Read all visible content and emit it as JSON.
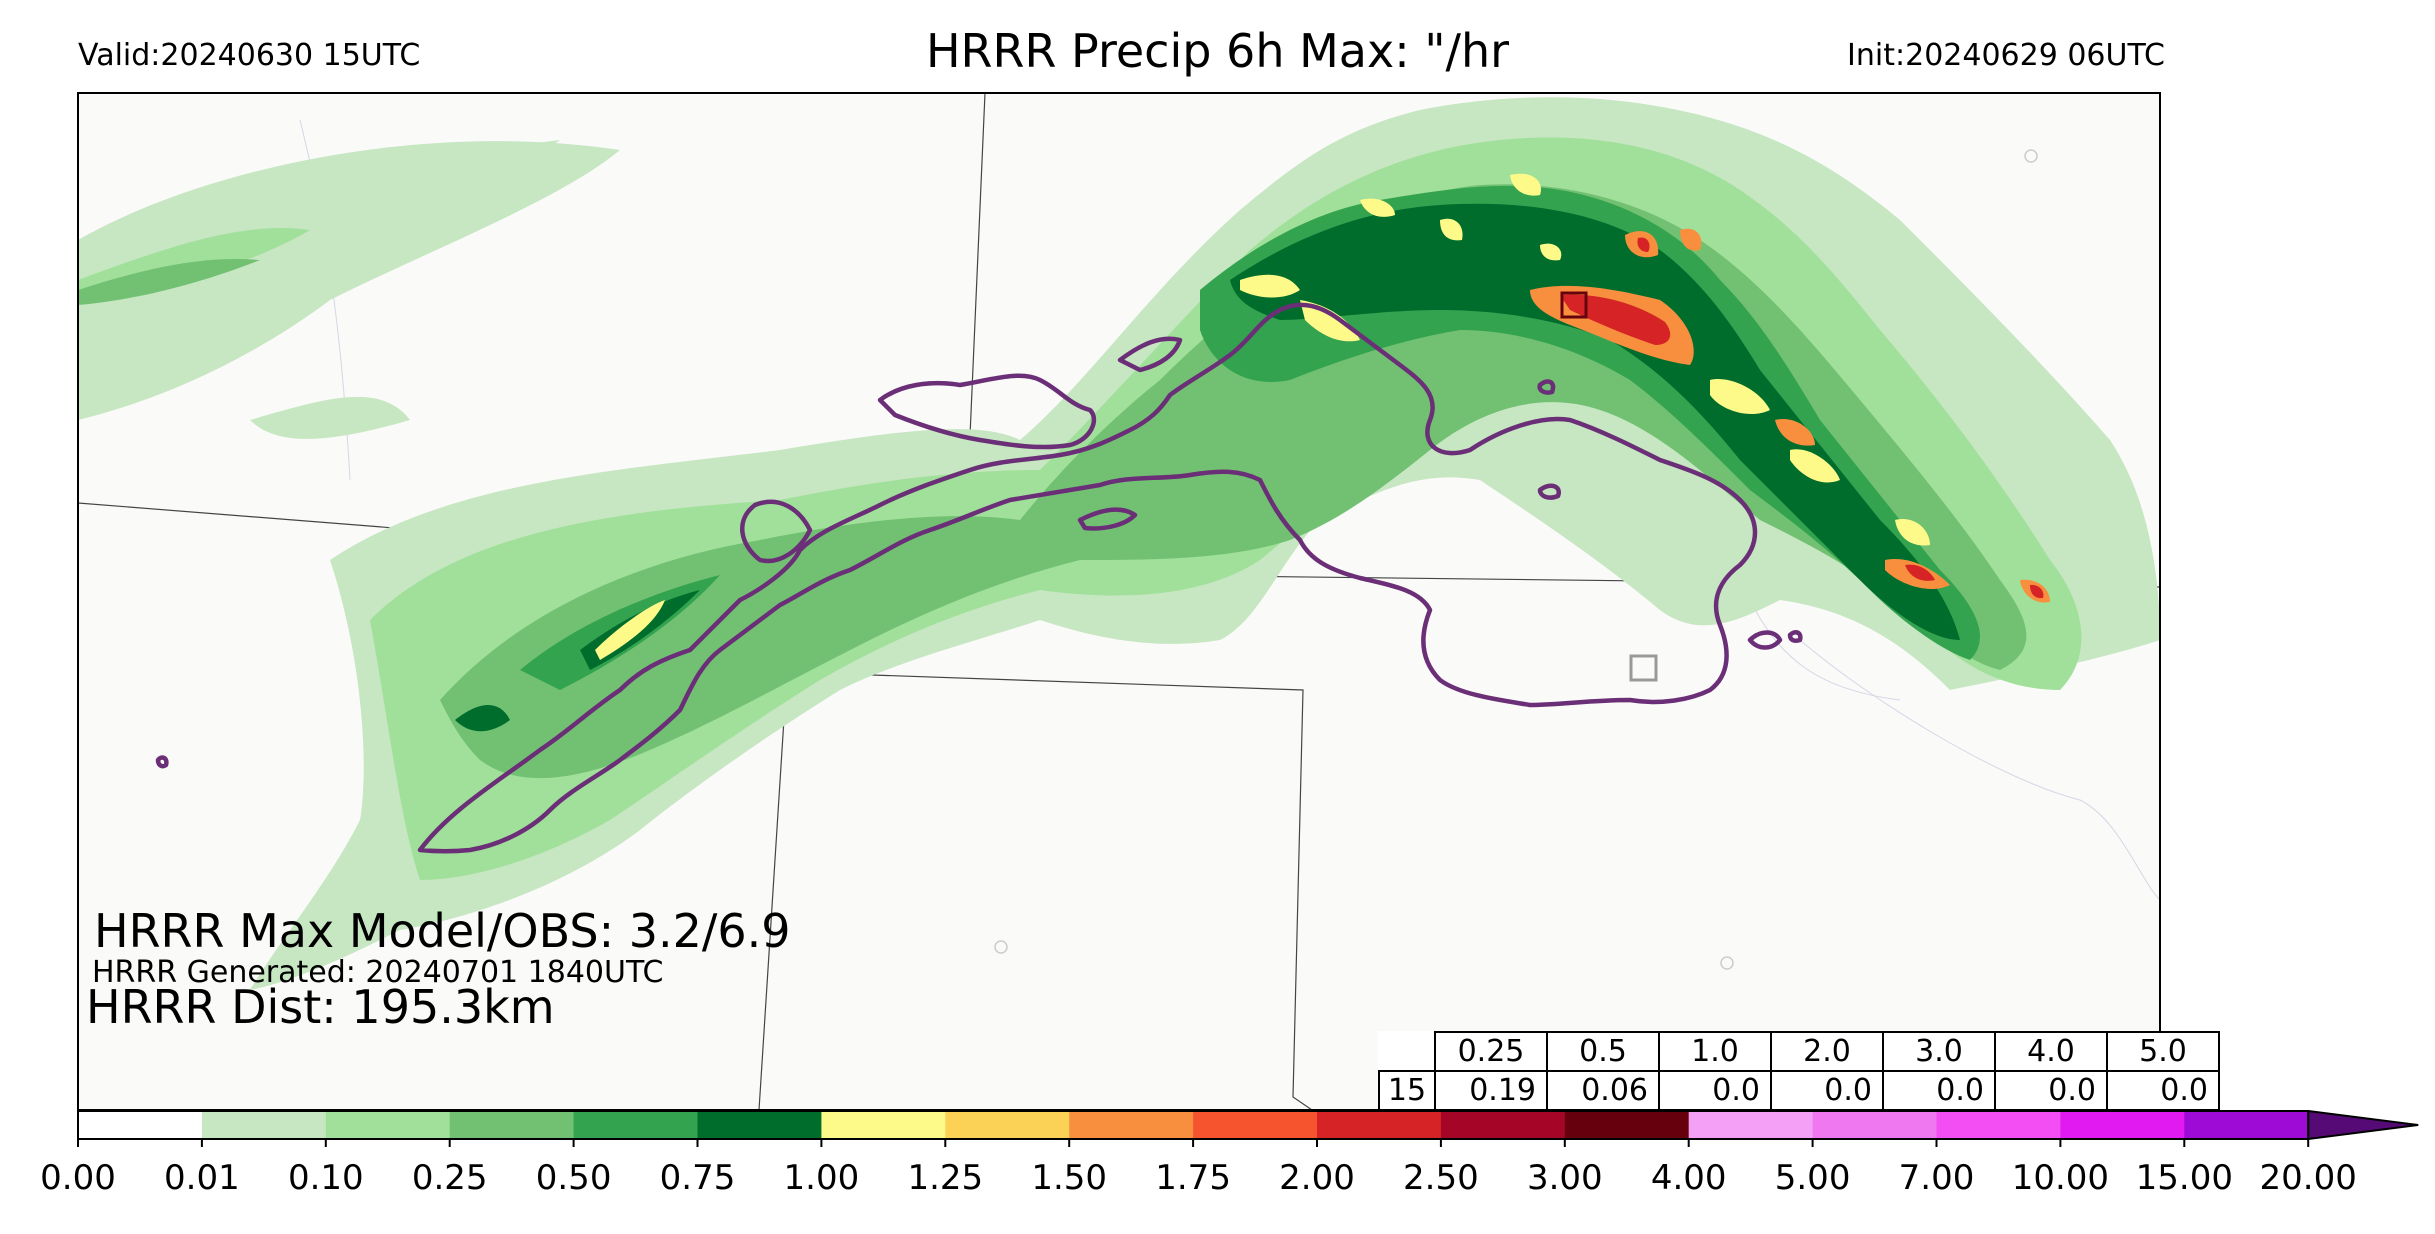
{
  "header": {
    "valid": "Valid:20240630 15UTC",
    "title": "HRRR Precip 6h Max: \"/hr",
    "init": "Init:20240629 06UTC"
  },
  "stats": {
    "max_model_obs": "HRRR Max Model/OBS: 3.2/6.9",
    "generated": "HRRR Generated: 20240701 1840UTC",
    "dist": "HRRR Dist: 195.3km"
  },
  "threshold_table": {
    "thresholds": [
      "0.25",
      "0.5",
      "1.0",
      "2.0",
      "3.0",
      "4.0",
      "5.0"
    ],
    "row_label": "15",
    "values": [
      "0.19",
      "0.06",
      "0.0",
      "0.0",
      "0.0",
      "0.0",
      "0.0"
    ]
  },
  "colorbar": {
    "ticks": [
      "0.00",
      "0.01",
      "0.10",
      "0.25",
      "0.50",
      "0.75",
      "1.00",
      "1.25",
      "1.50",
      "1.75",
      "2.00",
      "2.50",
      "3.00",
      "4.00",
      "5.00",
      "7.00",
      "10.00",
      "15.00",
      "20.00"
    ],
    "colors": [
      "#ffffff",
      "#c7e6c2",
      "#a1e09a",
      "#72c173",
      "#34a34f",
      "#006d2c",
      "#fdfa8a",
      "#fbd256",
      "#f88f3e",
      "#f6542e",
      "#d62326",
      "#a50527",
      "#67000d",
      "#f4a0f6",
      "#ef78f0",
      "#f34ef4",
      "#e11af2",
      "#9e0bd6"
    ],
    "extend_color": "#560a75"
  },
  "map": {
    "colors": {
      "background": "#fafaf8",
      "outline": "#6b2f78",
      "lightest_green": "#c7e6c2",
      "light_green": "#a1e09a",
      "mid_green": "#72c173",
      "green": "#34a34f",
      "dark_green": "#006d2c",
      "yellow": "#fdfa8a",
      "orange": "#f88f3e",
      "red": "#d62326",
      "dark_red": "#a50527"
    },
    "markers": {
      "obs_box_color": "#67000d",
      "model_box_color": "#999999"
    }
  }
}
